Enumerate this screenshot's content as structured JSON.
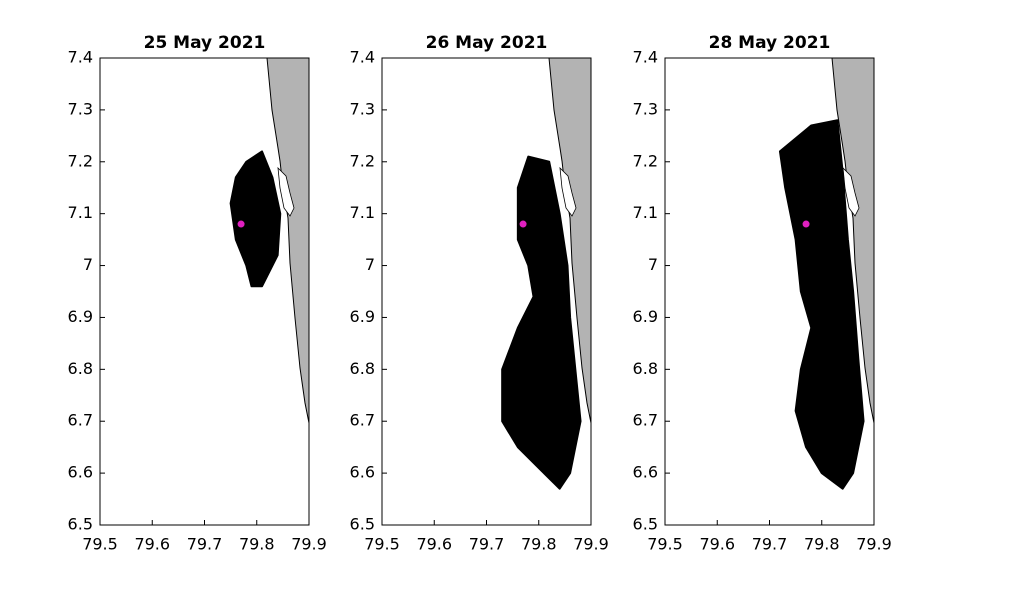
{
  "chart_data": [
    {
      "type": "scatter",
      "title": "25 May 2021",
      "xlim": [
        79.5,
        79.9
      ],
      "ylim": [
        6.5,
        7.4
      ],
      "xticks": [
        79.5,
        79.6,
        79.7,
        79.8,
        79.9
      ],
      "yticks": [
        6.5,
        6.6,
        6.7,
        6.8,
        6.9,
        7,
        7.1,
        7.2,
        7.3,
        7.4
      ],
      "series": [
        {
          "color": "#000000",
          "fill": true,
          "x": [
            79.78,
            79.81,
            79.83,
            79.845,
            79.84,
            79.81,
            79.79,
            79.78,
            79.76,
            79.75,
            79.76
          ],
          "values": [
            7.2,
            7.22,
            7.17,
            7.1,
            7.02,
            6.96,
            6.96,
            7.0,
            7.05,
            7.12,
            7.17
          ]
        },
        {
          "color": "#e020c0",
          "x": [
            79.77
          ],
          "values": [
            7.08
          ]
        }
      ]
    },
    {
      "type": "scatter",
      "title": "26 May 2021",
      "xlim": [
        79.5,
        79.9
      ],
      "ylim": [
        6.5,
        7.4
      ],
      "xticks": [
        79.5,
        79.6,
        79.7,
        79.8,
        79.9
      ],
      "yticks": [
        6.5,
        6.6,
        6.7,
        6.8,
        6.9,
        7,
        7.1,
        7.2,
        7.3,
        7.4
      ],
      "series": [
        {
          "color": "#000000",
          "fill": true,
          "x": [
            79.78,
            79.82,
            79.84,
            79.855,
            79.86,
            79.87,
            79.88,
            79.86,
            79.84,
            79.81,
            79.76,
            79.73,
            79.73,
            79.76,
            79.79,
            79.78,
            79.76,
            79.76
          ],
          "values": [
            7.21,
            7.2,
            7.1,
            7.0,
            6.9,
            6.8,
            6.7,
            6.6,
            6.57,
            6.6,
            6.65,
            6.7,
            6.8,
            6.88,
            6.94,
            7.0,
            7.05,
            7.15
          ]
        },
        {
          "color": "#e020c0",
          "x": [
            79.77
          ],
          "values": [
            7.08
          ]
        }
      ]
    },
    {
      "type": "scatter",
      "title": "28 May 2021",
      "xlim": [
        79.5,
        79.9
      ],
      "ylim": [
        6.5,
        7.4
      ],
      "xticks": [
        79.5,
        79.6,
        79.7,
        79.8,
        79.9
      ],
      "yticks": [
        6.5,
        6.6,
        6.7,
        6.8,
        6.9,
        7,
        7.1,
        7.2,
        7.3,
        7.4
      ],
      "series": [
        {
          "color": "#000000",
          "fill": true,
          "x": [
            79.72,
            79.78,
            79.83,
            79.84,
            79.85,
            79.86,
            79.87,
            79.88,
            79.86,
            79.84,
            79.8,
            79.77,
            79.75,
            79.76,
            79.78,
            79.76,
            79.75,
            79.73
          ],
          "values": [
            7.22,
            7.27,
            7.28,
            7.18,
            7.05,
            6.95,
            6.82,
            6.7,
            6.6,
            6.57,
            6.6,
            6.65,
            6.72,
            6.8,
            6.88,
            6.95,
            7.05,
            7.15
          ]
        },
        {
          "color": "#e020c0",
          "x": [
            79.77
          ],
          "values": [
            7.08
          ]
        }
      ]
    }
  ]
}
